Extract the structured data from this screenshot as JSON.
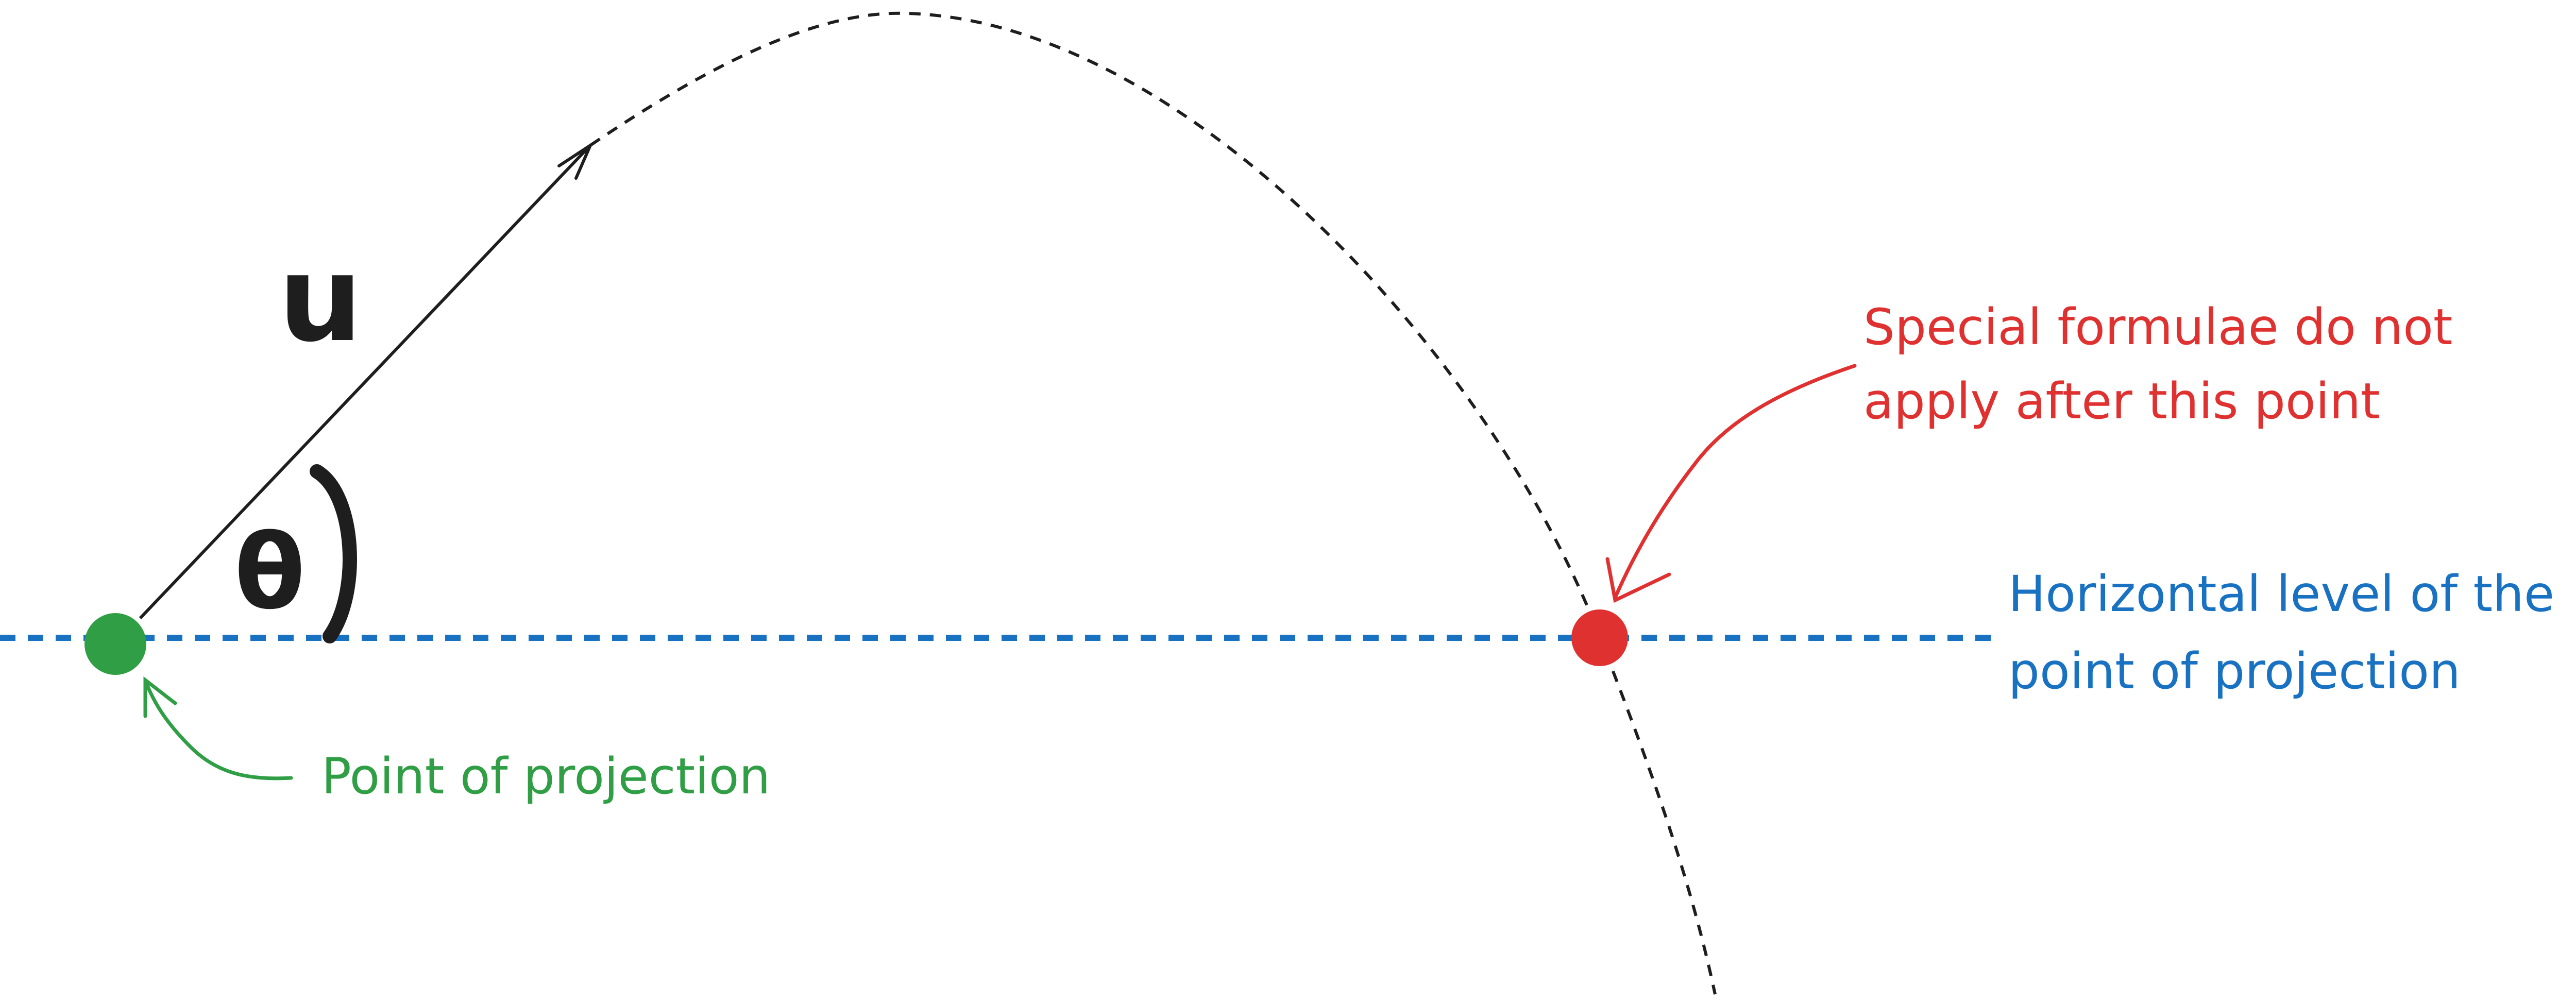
{
  "colors": {
    "stroke": "#1e1e1e",
    "green": "#2f9e44",
    "red": "#e03131",
    "blue": "#1971c2"
  },
  "labels": {
    "velocity": "u",
    "angle": "θ",
    "angle_arc": ")",
    "point_of_projection": "Point of projection",
    "special_line1": "Special formulae do not",
    "special_line2": "apply after this point",
    "horizontal_line1": "Horizontal level of the",
    "horizontal_line2": "point of projection"
  }
}
